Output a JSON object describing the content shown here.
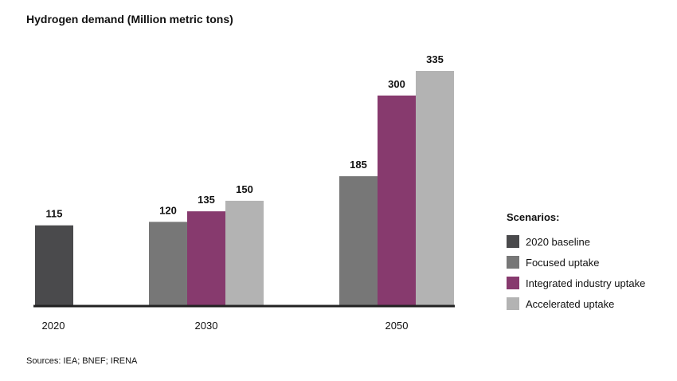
{
  "chart_data": {
    "type": "bar",
    "title": "Hydrogen demand (Million metric tons)",
    "categories": [
      "2020",
      "2030",
      "2050"
    ],
    "series": [
      {
        "name": "2020 baseline",
        "color": "#4a4a4c",
        "values": [
          115,
          null,
          null
        ]
      },
      {
        "name": "Focused uptake",
        "color": "#777777",
        "values": [
          null,
          120,
          185
        ]
      },
      {
        "name": "Integrated industry uptake",
        "color": "#873a6e",
        "values": [
          null,
          135,
          300
        ]
      },
      {
        "name": "Accelerated uptake",
        "color": "#b3b3b3",
        "values": [
          null,
          150,
          335
        ]
      }
    ],
    "legend_title": "Scenarios:",
    "legend_position": "right",
    "ylim": [
      0,
      335
    ],
    "grid": false
  },
  "source": "Sources: IEA; BNEF; IRENA"
}
